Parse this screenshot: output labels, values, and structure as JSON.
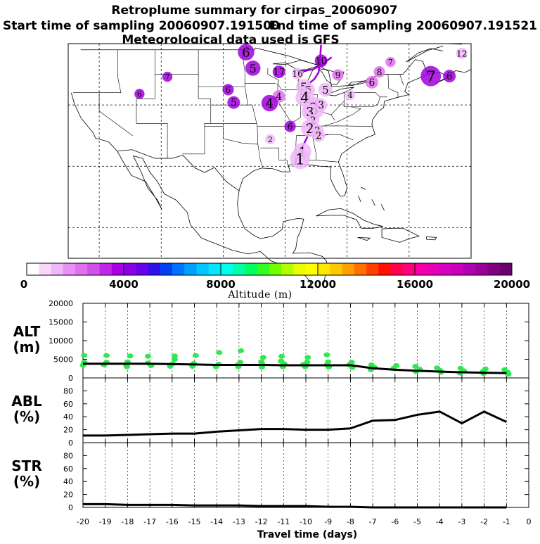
{
  "chart_data": [
    {
      "type": "map",
      "title": "Retroplume summary for cirpas_20060907",
      "subtitle_start": "Start time of sampling 20060907.191500",
      "subtitle_end": "End time of sampling 20060907.191521",
      "subtitle_met": "Meteorological data used is GFS",
      "markers": [
        {
          "label": "6",
          "lon": -96.3,
          "lat": 48.6,
          "color": "#a000dc",
          "size": 1.3
        },
        {
          "label": "5",
          "lon": -95.2,
          "lat": 46.0,
          "color": "#a000dc",
          "size": 1.2
        },
        {
          "label": "17",
          "lon": -91.0,
          "lat": 45.4,
          "color": "#a000dc",
          "size": 1.0
        },
        {
          "label": "16",
          "lon": -88.0,
          "lat": 45.1,
          "color": "#f0b8f8",
          "size": 0.9
        },
        {
          "label": "10",
          "lon": -84.2,
          "lat": 47.2,
          "color": "#a000dc",
          "size": 1.0
        },
        {
          "label": "9",
          "lon": -81.5,
          "lat": 44.9,
          "color": "#e070f0",
          "size": 0.9
        },
        {
          "label": "8",
          "lon": -74.8,
          "lat": 45.4,
          "color": "#e070f0",
          "size": 0.9
        },
        {
          "label": "7",
          "lon": -73.0,
          "lat": 47.0,
          "color": "#e070f0",
          "size": 0.8
        },
        {
          "label": "7",
          "lon": -66.5,
          "lat": 44.7,
          "color": "#a000dc",
          "size": 1.6
        },
        {
          "label": "6",
          "lon": -63.5,
          "lat": 44.7,
          "color": "#a000dc",
          "size": 1.0
        },
        {
          "label": "6",
          "lon": -76.0,
          "lat": 43.7,
          "color": "#e070f0",
          "size": 1.0
        },
        {
          "label": "12",
          "lon": -61.5,
          "lat": 48.4,
          "color": "#f0b8f8",
          "size": 0.9
        },
        {
          "label": "5",
          "lon": -87.0,
          "lat": 43.0,
          "color": "#f0b8f8",
          "size": 1.2
        },
        {
          "label": "5",
          "lon": -86.2,
          "lat": 42.5,
          "color": "#f0b8f8",
          "size": 1.0
        },
        {
          "label": "5",
          "lon": -83.5,
          "lat": 42.5,
          "color": "#f0b8f8",
          "size": 1.1
        },
        {
          "label": "4",
          "lon": -79.5,
          "lat": 41.6,
          "color": "#f0b8f8",
          "size": 0.8
        },
        {
          "label": "4",
          "lon": -91.0,
          "lat": 41.4,
          "color": "#e070f0",
          "size": 1.0
        },
        {
          "label": "4",
          "lon": -92.5,
          "lat": 40.3,
          "color": "#a000dc",
          "size": 1.3
        },
        {
          "label": "4",
          "lon": -86.8,
          "lat": 41.2,
          "color": "#f0b8f8",
          "size": 1.5
        },
        {
          "label": "4",
          "lon": -85.0,
          "lat": 40.2,
          "color": "#f0b8f8",
          "size": 1.0
        },
        {
          "label": "3",
          "lon": -85.4,
          "lat": 39.4,
          "color": "#f0b8f8",
          "size": 1.7
        },
        {
          "label": "3",
          "lon": -84.2,
          "lat": 40.0,
          "color": "#f0b8f8",
          "size": 1.0
        },
        {
          "label": "3",
          "lon": -86.0,
          "lat": 38.9,
          "color": "#f0b8f8",
          "size": 1.3
        },
        {
          "label": "2",
          "lon": -85.5,
          "lat": 37.5,
          "color": "#f0b8f8",
          "size": 1.0
        },
        {
          "label": "2",
          "lon": -86.0,
          "lat": 36.2,
          "color": "#f0b8f8",
          "size": 1.4
        },
        {
          "label": "2",
          "lon": -84.8,
          "lat": 35.8,
          "color": "#f0b8f8",
          "size": 1.0
        },
        {
          "label": "2",
          "lon": -84.6,
          "lat": 35.0,
          "color": "#f0b8f8",
          "size": 1.0
        },
        {
          "label": "2",
          "lon": -92.4,
          "lat": 34.4,
          "color": "#f0b8f8",
          "size": 0.8
        },
        {
          "label": "6",
          "lon": -89.2,
          "lat": 36.5,
          "color": "#a000dc",
          "size": 0.9
        },
        {
          "label": "1",
          "lon": -87.2,
          "lat": 32.4,
          "color": "#f0b8f8",
          "size": 1.4
        },
        {
          "label": "1",
          "lon": -87.6,
          "lat": 31.2,
          "color": "#f0b8f8",
          "size": 1.6
        },
        {
          "label": "5",
          "lon": -98.3,
          "lat": 40.4,
          "color": "#a000dc",
          "size": 1.0
        },
        {
          "label": "6",
          "lon": -99.2,
          "lat": 42.5,
          "color": "#a000dc",
          "size": 0.9
        },
        {
          "label": "7",
          "lon": -109.0,
          "lat": 44.6,
          "color": "#a000dc",
          "size": 0.8
        },
        {
          "label": "6",
          "lon": -113.5,
          "lat": 41.8,
          "color": "#a000dc",
          "size": 0.8
        }
      ]
    },
    {
      "type": "colorbar",
      "xlabel": "Altitude (m)",
      "range": [
        0,
        20000
      ],
      "tick_labels": [
        "0",
        "4000",
        "8000",
        "12000",
        "16000",
        "20000"
      ],
      "colors": [
        "#ffffff",
        "#f8d8f8",
        "#f0b8f8",
        "#e890f4",
        "#e070f0",
        "#d050ec",
        "#c028e8",
        "#a800e4",
        "#8c00e8",
        "#6a00e8",
        "#3010e8",
        "#0040f4",
        "#0070ff",
        "#00a0ff",
        "#00c8ff",
        "#00e8ff",
        "#00ffe8",
        "#00ffa8",
        "#00ff60",
        "#30ff20",
        "#70ff00",
        "#b0ff00",
        "#e8ff00",
        "#ffff00",
        "#ffe800",
        "#ffc800",
        "#ffa000",
        "#ff7000",
        "#ff4000",
        "#ff1000",
        "#ff0050",
        "#ff0080",
        "#f800a8",
        "#e800b8",
        "#d800c0",
        "#c800b8",
        "#b000b0",
        "#980098",
        "#800080",
        "#6a006a"
      ]
    },
    {
      "type": "line",
      "ylabel": "ALT\n(m)",
      "ylim": [
        0,
        20000
      ],
      "yticks": [
        "0",
        "5000",
        "10000",
        "15000",
        "20000"
      ],
      "x": [
        -20,
        -19,
        -18,
        -17,
        -16,
        -15,
        -14,
        -13,
        -12,
        -11,
        -10,
        -9,
        -8,
        -7,
        -6,
        -5,
        -4,
        -3,
        -2,
        -1
      ],
      "series": [
        {
          "name": "mean",
          "values": [
            3800,
            3800,
            3800,
            3800,
            3700,
            3600,
            3500,
            3500,
            3500,
            3400,
            3400,
            3400,
            3400,
            2600,
            2200,
            1900,
            1700,
            1500,
            1400,
            1300
          ]
        }
      ],
      "scatter_color": "#30e850",
      "scatter": [
        [
          -20,
          6000
        ],
        [
          -20,
          4200
        ],
        [
          -20,
          3400
        ],
        [
          -19,
          6000
        ],
        [
          -19,
          4200
        ],
        [
          -19,
          3500
        ],
        [
          -18,
          5900
        ],
        [
          -18,
          4300
        ],
        [
          -18,
          3500
        ],
        [
          -18,
          3000
        ],
        [
          -17,
          5800
        ],
        [
          -17,
          4000
        ],
        [
          -17,
          3300
        ],
        [
          -16,
          5900
        ],
        [
          -16,
          5000
        ],
        [
          -16,
          3800
        ],
        [
          -16,
          3100
        ],
        [
          -15,
          6000
        ],
        [
          -15,
          3900
        ],
        [
          -15,
          3100
        ],
        [
          -14,
          6800
        ],
        [
          -14,
          3700
        ],
        [
          -14,
          3000
        ],
        [
          -13,
          7300
        ],
        [
          -13,
          4200
        ],
        [
          -13,
          3500
        ],
        [
          -13,
          3000
        ],
        [
          -12,
          5500
        ],
        [
          -12,
          4300
        ],
        [
          -12,
          3800
        ],
        [
          -12,
          2900
        ],
        [
          -11,
          5800
        ],
        [
          -11,
          4500
        ],
        [
          -11,
          3800
        ],
        [
          -11,
          3000
        ],
        [
          -10,
          5500
        ],
        [
          -10,
          4200
        ],
        [
          -10,
          3600
        ],
        [
          -10,
          3000
        ],
        [
          -9,
          6200
        ],
        [
          -9,
          4300
        ],
        [
          -9,
          3500
        ],
        [
          -9,
          2900
        ],
        [
          -8,
          4200
        ],
        [
          -8,
          3500
        ],
        [
          -8,
          2800
        ],
        [
          -7,
          3500
        ],
        [
          -7,
          2800
        ],
        [
          -7,
          2200
        ],
        [
          -6,
          3300
        ],
        [
          -6,
          2600
        ],
        [
          -5,
          3100
        ],
        [
          -5,
          2300
        ],
        [
          -5,
          1700
        ],
        [
          -4,
          2700
        ],
        [
          -4,
          2000
        ],
        [
          -4,
          1500
        ],
        [
          -3,
          2600
        ],
        [
          -3,
          1900
        ],
        [
          -3,
          1300
        ],
        [
          -2,
          2400
        ],
        [
          -2,
          1700
        ],
        [
          -2,
          1200
        ],
        [
          -1,
          2200
        ],
        [
          -1,
          1500
        ],
        [
          -1,
          1000
        ]
      ]
    },
    {
      "type": "line",
      "ylabel": "ABL\n(%)",
      "ylim": [
        0,
        100
      ],
      "yticks": [
        "0",
        "20",
        "40",
        "60",
        "80"
      ],
      "x": [
        -20,
        -19,
        -18,
        -17,
        -16,
        -15,
        -14,
        -13,
        -12,
        -11,
        -10,
        -9,
        -8,
        -7,
        -6,
        -5,
        -4,
        -3,
        -2,
        -1
      ],
      "series": [
        {
          "name": "ABL",
          "values": [
            11,
            11,
            12,
            13,
            14,
            14,
            17,
            19,
            21,
            21,
            20,
            20,
            22,
            34,
            35,
            43,
            48,
            30,
            48,
            32
          ]
        }
      ]
    },
    {
      "type": "line",
      "ylabel": "STR\n(%)",
      "ylim": [
        0,
        100
      ],
      "yticks": [
        "0",
        "20",
        "40",
        "60",
        "80"
      ],
      "x": [
        -20,
        -19,
        -18,
        -17,
        -16,
        -15,
        -14,
        -13,
        -12,
        -11,
        -10,
        -9,
        -8,
        -7,
        -6,
        -5,
        -4,
        -3,
        -2,
        -1
      ],
      "series": [
        {
          "name": "STR",
          "values": [
            5,
            5,
            4,
            4,
            4,
            3,
            3,
            3,
            2,
            2,
            2,
            1,
            1,
            0,
            0,
            0,
            0,
            0,
            0,
            0
          ]
        }
      ],
      "xlabel": "Travel time (days)",
      "xticks": [
        "-20",
        "-19",
        "-18",
        "-17",
        "-16",
        "-15",
        "-14",
        "-13",
        "-12",
        "-11",
        "-10",
        "-9",
        "-8",
        "-7",
        "-6",
        "-5",
        "-4",
        "-3",
        "-2",
        "-1",
        "0"
      ]
    }
  ]
}
